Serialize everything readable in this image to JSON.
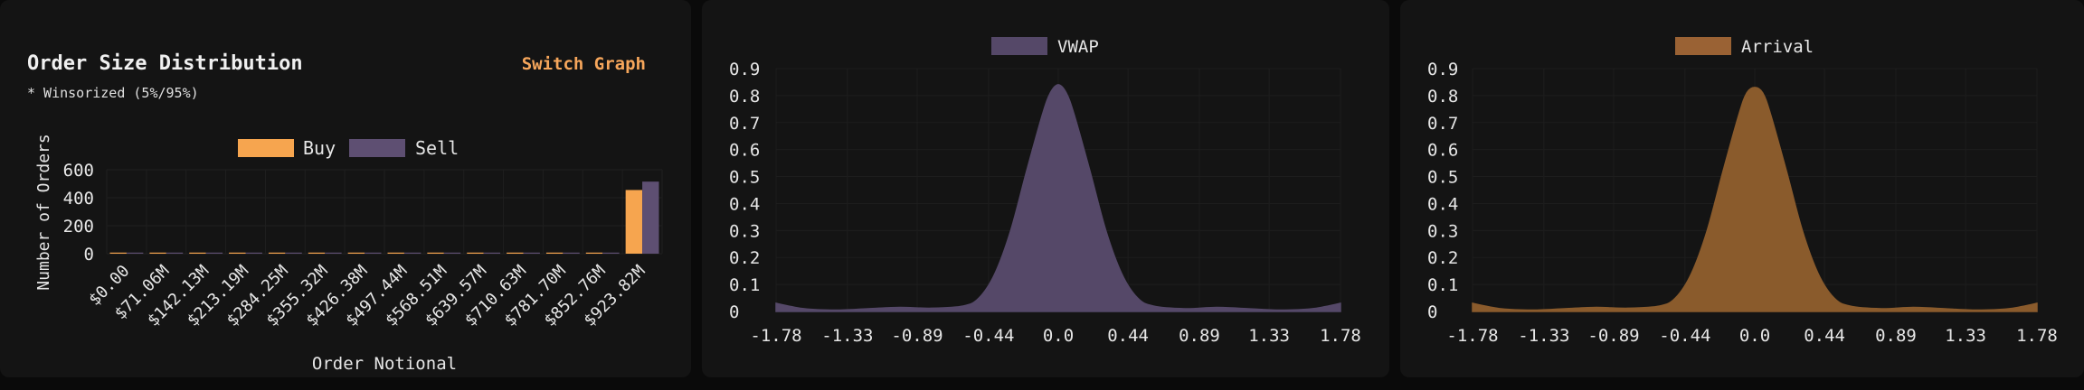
{
  "panels": {
    "distribution": {
      "title": "Order Size Distribution",
      "note": "* Winsorized (5%/95%)",
      "switch_label": "Switch Graph"
    }
  },
  "colors": {
    "buy": "#f6a54f",
    "sell": "#5e4f72",
    "vwap_fill": "#554868",
    "arrival_fill": "#8a5b2c",
    "arrival_legend": "#9a6234"
  },
  "chart_data": [
    {
      "type": "bar",
      "xlabel": "Order Notional",
      "ylabel": "Number of Orders",
      "ylim": [
        0,
        600
      ],
      "yticks": [
        0,
        200,
        400,
        600
      ],
      "categories": [
        "$0.00",
        "$71.06M",
        "$142.13M",
        "$213.19M",
        "$284.25M",
        "$355.32M",
        "$426.38M",
        "$497.44M",
        "$568.51M",
        "$639.57M",
        "$710.63M",
        "$781.70M",
        "$852.76M",
        "$923.82M"
      ],
      "series": [
        {
          "name": "Buy",
          "values": [
            2,
            1,
            1,
            1,
            1,
            1,
            1,
            1,
            1,
            1,
            1,
            1,
            1,
            455
          ]
        },
        {
          "name": "Sell",
          "values": [
            1,
            1,
            1,
            1,
            1,
            1,
            1,
            1,
            1,
            1,
            1,
            1,
            1,
            515
          ]
        }
      ],
      "legend": "top-center"
    },
    {
      "type": "area",
      "series_name": "VWAP",
      "ylim": [
        0,
        0.9
      ],
      "yticks": [
        "0",
        "0.1",
        "0.2",
        "0.3",
        "0.4",
        "0.5",
        "0.6",
        "0.7",
        "0.8",
        "0.9"
      ],
      "xticks": [
        "-1.78",
        "-1.33",
        "-0.89",
        "-0.44",
        "0.0",
        "0.44",
        "0.89",
        "1.33",
        "1.78"
      ],
      "x": [
        -1.78,
        -1.6,
        -1.4,
        -1.2,
        -1.0,
        -0.8,
        -0.6,
        -0.5,
        -0.4,
        -0.3,
        -0.2,
        -0.1,
        -0.05,
        0.0,
        0.05,
        0.1,
        0.2,
        0.3,
        0.4,
        0.5,
        0.6,
        0.8,
        1.0,
        1.2,
        1.4,
        1.6,
        1.78
      ],
      "y": [
        0.03,
        0.01,
        0.005,
        0.01,
        0.015,
        0.012,
        0.02,
        0.05,
        0.14,
        0.3,
        0.52,
        0.73,
        0.81,
        0.84,
        0.81,
        0.73,
        0.52,
        0.3,
        0.14,
        0.05,
        0.02,
        0.01,
        0.015,
        0.01,
        0.005,
        0.01,
        0.03
      ],
      "legend": "top-center"
    },
    {
      "type": "area",
      "series_name": "Arrival",
      "ylim": [
        0,
        0.9
      ],
      "yticks": [
        "0",
        "0.1",
        "0.2",
        "0.3",
        "0.4",
        "0.5",
        "0.6",
        "0.7",
        "0.8",
        "0.9"
      ],
      "xticks": [
        "-1.78",
        "-1.33",
        "-0.89",
        "-0.44",
        "0.0",
        "0.44",
        "0.89",
        "1.33",
        "1.78"
      ],
      "x": [
        -1.78,
        -1.6,
        -1.4,
        -1.2,
        -1.0,
        -0.8,
        -0.6,
        -0.5,
        -0.4,
        -0.3,
        -0.2,
        -0.1,
        -0.05,
        0.0,
        0.05,
        0.1,
        0.2,
        0.3,
        0.4,
        0.5,
        0.6,
        0.8,
        1.0,
        1.2,
        1.4,
        1.6,
        1.78
      ],
      "y": [
        0.03,
        0.01,
        0.005,
        0.01,
        0.015,
        0.012,
        0.02,
        0.05,
        0.14,
        0.3,
        0.52,
        0.73,
        0.81,
        0.83,
        0.81,
        0.73,
        0.52,
        0.3,
        0.14,
        0.05,
        0.02,
        0.01,
        0.015,
        0.01,
        0.005,
        0.01,
        0.03
      ],
      "legend": "top-center"
    }
  ]
}
